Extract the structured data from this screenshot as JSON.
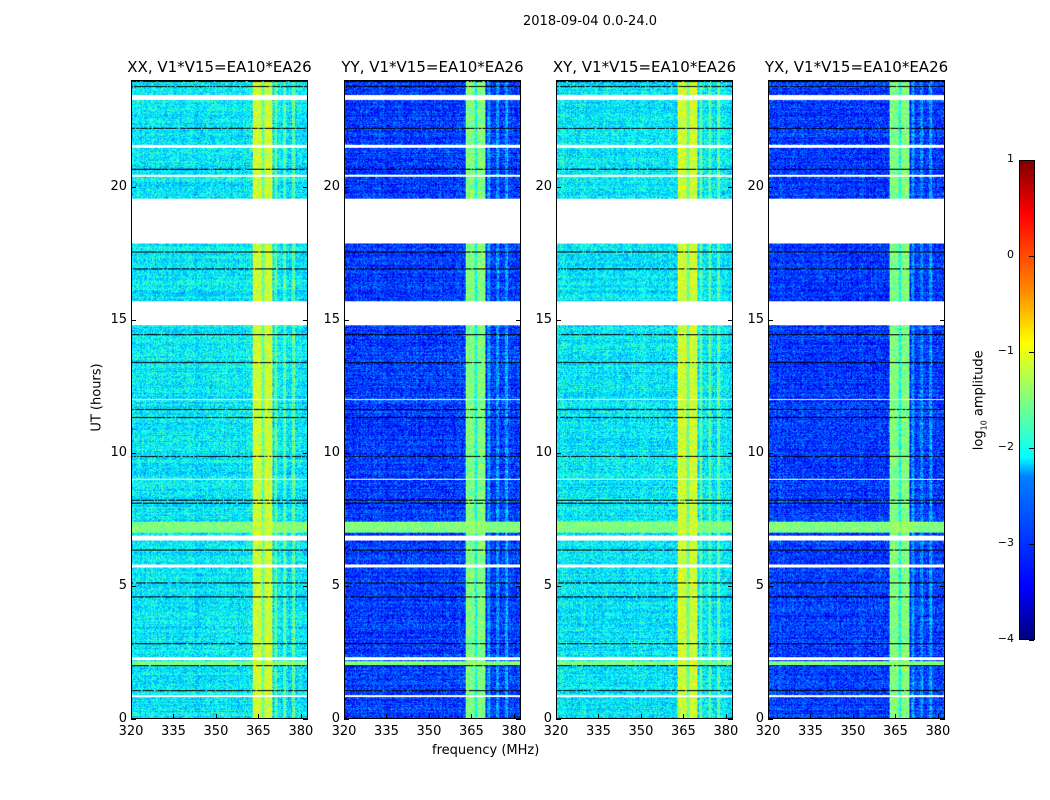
{
  "chart_data": {
    "type": "heatmap",
    "title": "2018-09-04 0.0-24.0",
    "xlabel": "frequency (MHz)",
    "ylabel": "UT (hours)",
    "xlim": [
      320,
      382.5
    ],
    "ylim": [
      0,
      24
    ],
    "xticks": [
      "320",
      "335",
      "350",
      "365",
      "380"
    ],
    "xtick_values": [
      320,
      335,
      350,
      365,
      380
    ],
    "yticks": [
      "0",
      "5",
      "10",
      "15",
      "20"
    ],
    "ytick_values": [
      0,
      5,
      10,
      15,
      20
    ],
    "colorbar": {
      "label": "log",
      "label_sub": "10",
      "label_rest": " amplitude",
      "range": [
        -4,
        1
      ],
      "ticks": [
        "1",
        "0",
        "−1",
        "−2",
        "−3",
        "−4"
      ],
      "tick_values": [
        1,
        0,
        -1,
        -2,
        -3,
        -4
      ],
      "colormap": "jet"
    },
    "panels": [
      {
        "title": "XX, V1*V15=EA10*EA26",
        "background_log_amp": -2.2,
        "rfi_log_amp": -1.1
      },
      {
        "title": "YY, V1*V15=EA10*EA26",
        "background_log_amp": -3.1,
        "rfi_log_amp": -1.5
      },
      {
        "title": "XY, V1*V15=EA10*EA26",
        "background_log_amp": -2.2,
        "rfi_log_amp": -1.1
      },
      {
        "title": "YX, V1*V15=EA10*EA26",
        "background_log_amp": -3.1,
        "rfi_log_amp": -1.5
      }
    ],
    "rfi_band_mhz": [
      363,
      370
    ],
    "flagged_hours": [
      [
        17.9,
        19.6
      ],
      [
        14.8,
        15.7
      ],
      [
        23.3,
        23.5
      ],
      [
        21.5,
        21.6
      ],
      [
        20.4,
        20.5
      ],
      [
        6.7,
        6.9
      ],
      [
        2.2,
        2.3
      ],
      [
        0.8,
        0.9
      ],
      [
        12.0,
        12.05
      ],
      [
        9.0,
        9.05
      ],
      [
        5.7,
        5.8
      ]
    ],
    "bright_rows_hours": [
      [
        7.0,
        7.4
      ],
      [
        2.0,
        2.15
      ]
    ]
  }
}
